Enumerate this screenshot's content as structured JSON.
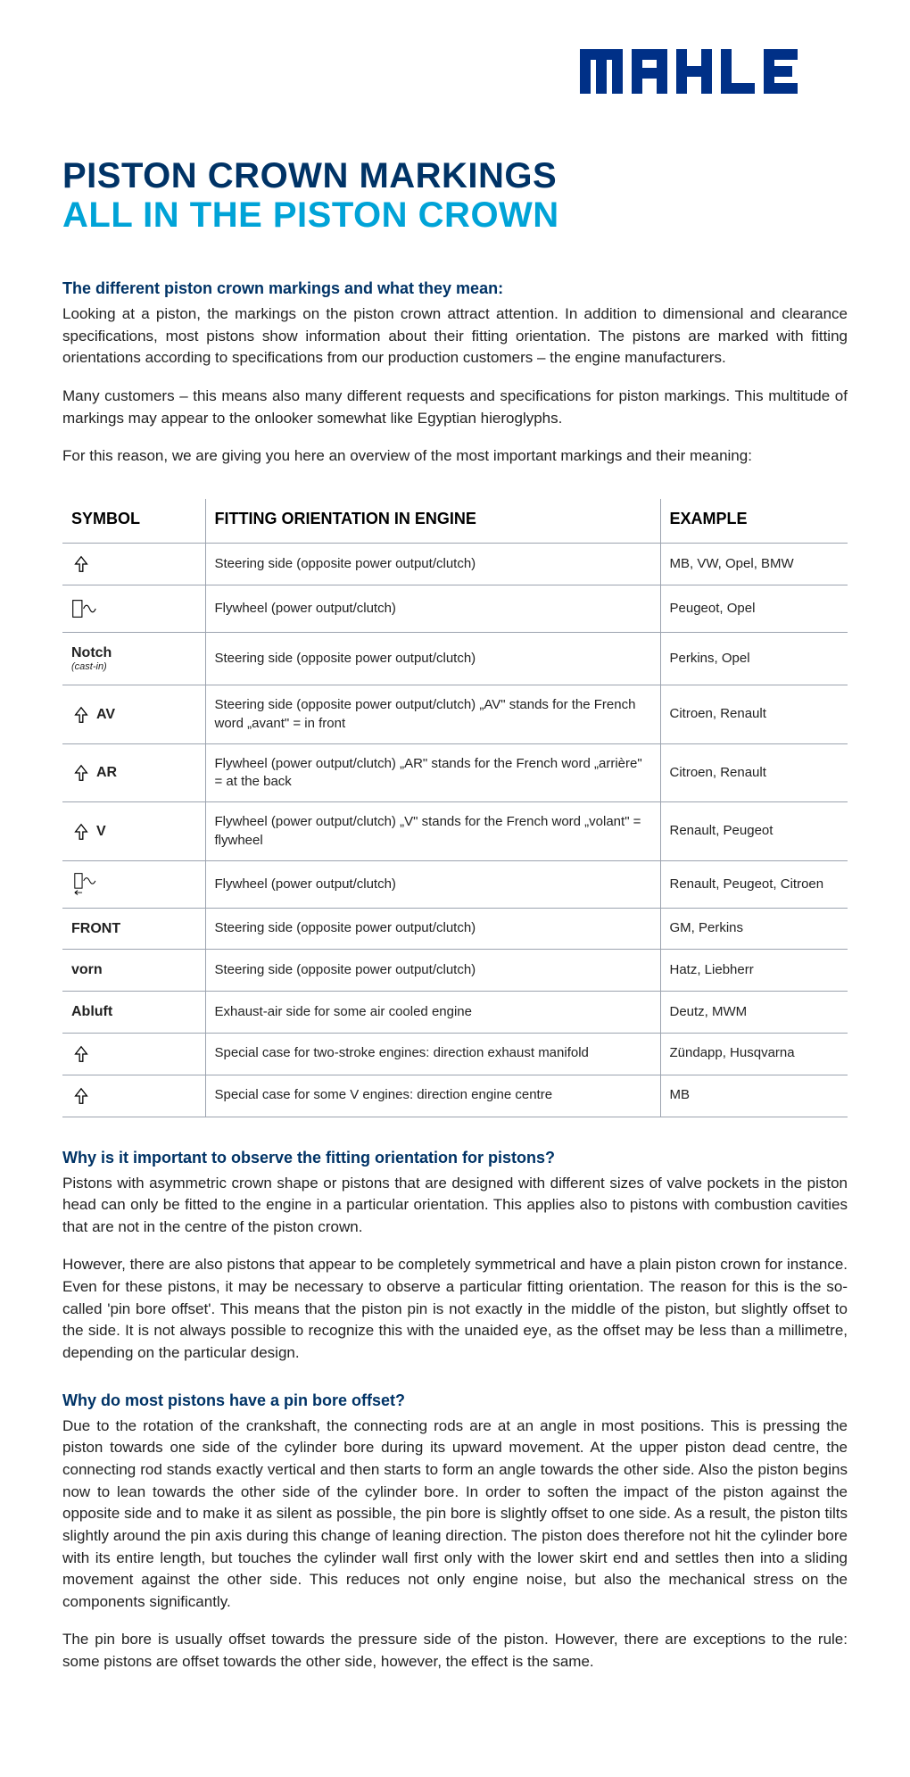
{
  "brand": "MAHLE",
  "title_line1": "PISTON CROWN MARKINGS",
  "title_line2": "ALL IN THE PISTON CROWN",
  "intro_head": "The different piston crown markings and what they mean:",
  "intro_p1": "Looking at a piston, the markings on the piston crown attract attention. In addition to dimensional and clearance specifications, most pistons show information about their fitting orientation. The pistons are marked with fitting orientations according to specifications from our production customers – the engine manufacturers.",
  "intro_p2": "Many customers – this means also many different requests and specifications for piston markings. This multitude of markings may appear to the onlooker somewhat like Egyptian hieroglyphs.",
  "intro_p3": "For this reason, we are giving you here an overview of the most important markings and their meaning:",
  "table": {
    "headers": {
      "symbol": "SYMBOL",
      "fit": "FITTING ORIENTATION IN ENGINE",
      "example": "EXAMPLE"
    },
    "rows": [
      {
        "symType": "arrow",
        "symLabel": "",
        "fit": "Steering side (opposite power output/clutch)",
        "example": "MB, VW, Opel, BMW"
      },
      {
        "symType": "flywheel",
        "symLabel": "",
        "fit": "Flywheel (power output/clutch)",
        "example": "Peugeot, Opel"
      },
      {
        "symType": "text",
        "symLabel": "Notch",
        "symSub": "(cast-in)",
        "fit": "Steering side (opposite power output/clutch)",
        "example": "Perkins, Opel"
      },
      {
        "symType": "arrowtext",
        "symLabel": "AV",
        "fit": "Steering side (opposite power output/clutch) „AV\" stands for the French word „avant\" = in front",
        "example": "Citroen, Renault"
      },
      {
        "symType": "arrowtext",
        "symLabel": "AR",
        "fit": "Flywheel (power output/clutch) „AR\" stands for the French word „arrière\" = at the back",
        "example": "Citroen, Renault"
      },
      {
        "symType": "arrowtext",
        "symLabel": "V",
        "fit": "Flywheel (power output/clutch) „V\" stands for the French word  „volant\" = flywheel",
        "example": "Renault, Peugeot"
      },
      {
        "symType": "flywheel-arrow",
        "symLabel": "",
        "fit": "Flywheel (power output/clutch)",
        "example": "Renault, Peugeot, Citroen"
      },
      {
        "symType": "text",
        "symLabel": "FRONT",
        "fit": "Steering side (opposite power output/clutch)",
        "example": "GM, Perkins"
      },
      {
        "symType": "text",
        "symLabel": "vorn",
        "fit": "Steering side (opposite power output/clutch)",
        "example": "Hatz, Liebherr"
      },
      {
        "symType": "text",
        "symLabel": "Abluft",
        "fit": "Exhaust-air side for some air cooled engine",
        "example": "Deutz, MWM"
      },
      {
        "symType": "arrow",
        "symLabel": "",
        "fit": "Special case  for two-stroke engines: direction exhaust manifold",
        "example": "Zündapp, Husqvarna"
      },
      {
        "symType": "arrow",
        "symLabel": "",
        "fit": "Special case  for some V engines: direction engine centre",
        "example": "MB"
      }
    ]
  },
  "sec2_head": "Why is it important to observe the fitting orientation for pistons?",
  "sec2_p1": "Pistons with asymmetric crown shape or pistons that are designed with different sizes of valve pockets in the piston head can only be fitted to the engine in a particular orientation. This applies also to pistons with combustion cavities that are not in the centre of the piston crown.",
  "sec2_p2": "However, there are also pistons that appear to be completely symmetrical and have a plain piston crown for instance. Even for these pistons, it may be necessary to observe a particular fitting orientation. The reason for this is the so-called 'pin bore offset'. This means that the piston pin is not exactly in the middle of the piston, but slightly offset to the side. It is not always possible to recognize this with the unaided eye, as the offset may be less than a millimetre, depending on the particular design.",
  "sec3_head": "Why do most pistons have a pin bore offset?",
  "sec3_p1": "Due to the rotation of the crankshaft, the connecting rods are at an angle in most positions. This is pressing the piston towards one side of the cylinder bore during its upward movement. At the upper piston dead centre, the connecting rod stands exactly vertical and then starts to form an angle towards the other side. Also the piston begins now to lean towards the other side of the cylinder bore. In order to soften the impact of the piston against the opposite side and to make it as silent as possible, the pin bore is slightly offset to one side. As a result, the piston tilts slightly around the pin axis during this change of leaning direction. The piston does therefore not hit the cylinder bore with its entire length, but touches the cylinder wall first only with the lower skirt end and settles then into a sliding movement against the other side. This reduces not only engine noise, but also the mechanical stress on the components significantly.",
  "sec3_p2": "The pin bore is usually offset towards the pressure side of the piston. However, there are exceptions to the rule: some pistons are offset towards the other side, however, the effect is the same.",
  "colors": {
    "brand_blue": "#003087",
    "heading_dark": "#003366",
    "heading_cyan": "#00a3d7",
    "text": "#222222",
    "rule": "#9ca3af"
  }
}
